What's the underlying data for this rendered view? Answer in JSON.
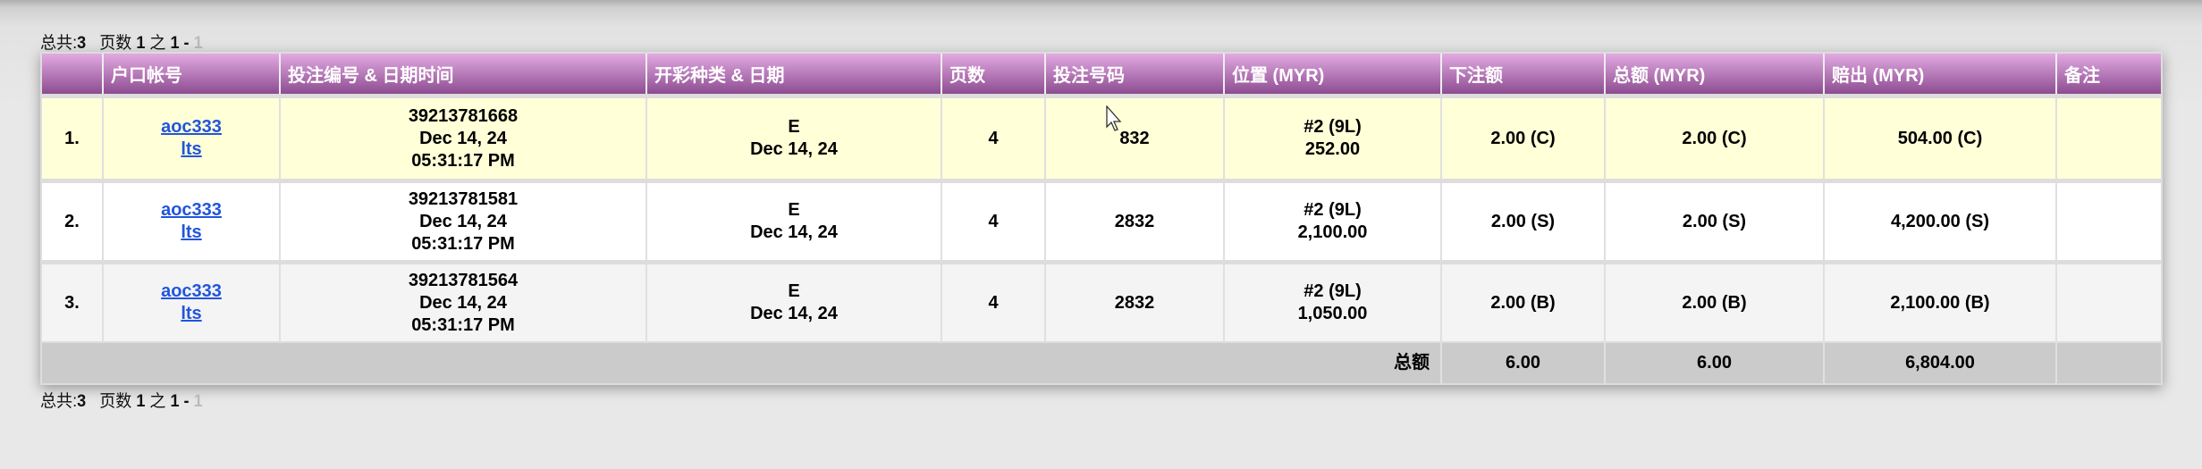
{
  "pager": {
    "total_label": "总共:",
    "total": "3",
    "page_label": "页数",
    "page": "1",
    "of_label": "之",
    "range_start": "1 -",
    "range_end": "1"
  },
  "headers": [
    "",
    "户口帐号",
    "投注编号 & 日期时间",
    "开彩种类 & 日期",
    "页数",
    "投注号码",
    "位置 (MYR)",
    "下注额",
    "总额 (MYR)",
    "赔出 (MYR)",
    "备注"
  ],
  "rows": [
    {
      "index": "1.",
      "account": "aoc333",
      "sub": "lts",
      "bet_id": "39213781668",
      "bet_date": "Dec 14, 24",
      "bet_time": "05:31:17 PM",
      "draw_type": "E",
      "draw_date": "Dec 14, 24",
      "pages": "4",
      "number": "832",
      "position": "#2 (9L)",
      "position_amount": "252.00",
      "stake": "2.00 (C)",
      "total": "2.00 (C)",
      "payout": "504.00 (C)",
      "remark": ""
    },
    {
      "index": "2.",
      "account": "aoc333",
      "sub": "lts",
      "bet_id": "39213781581",
      "bet_date": "Dec 14, 24",
      "bet_time": "05:31:17 PM",
      "draw_type": "E",
      "draw_date": "Dec 14, 24",
      "pages": "4",
      "number": "2832",
      "position": "#2 (9L)",
      "position_amount": "2,100.00",
      "stake": "2.00 (S)",
      "total": "2.00 (S)",
      "payout": "4,200.00 (S)",
      "remark": ""
    },
    {
      "index": "3.",
      "account": "aoc333",
      "sub": "lts",
      "bet_id": "39213781564",
      "bet_date": "Dec 14, 24",
      "bet_time": "05:31:17 PM",
      "draw_type": "E",
      "draw_date": "Dec 14, 24",
      "pages": "4",
      "number": "2832",
      "position": "#2 (9L)",
      "position_amount": "1,050.00",
      "stake": "2.00 (B)",
      "total": "2.00 (B)",
      "payout": "2,100.00 (B)",
      "remark": ""
    }
  ],
  "totals": {
    "label": "总额",
    "stake": "6.00",
    "total": "6.00",
    "payout": "6,804.00"
  },
  "colors": {
    "header_top": "#e2aae2",
    "header_bottom": "#8c4c90",
    "highlight_row": "#ffffd8",
    "link": "#2255dd",
    "total_row": "#cbcbcb"
  }
}
